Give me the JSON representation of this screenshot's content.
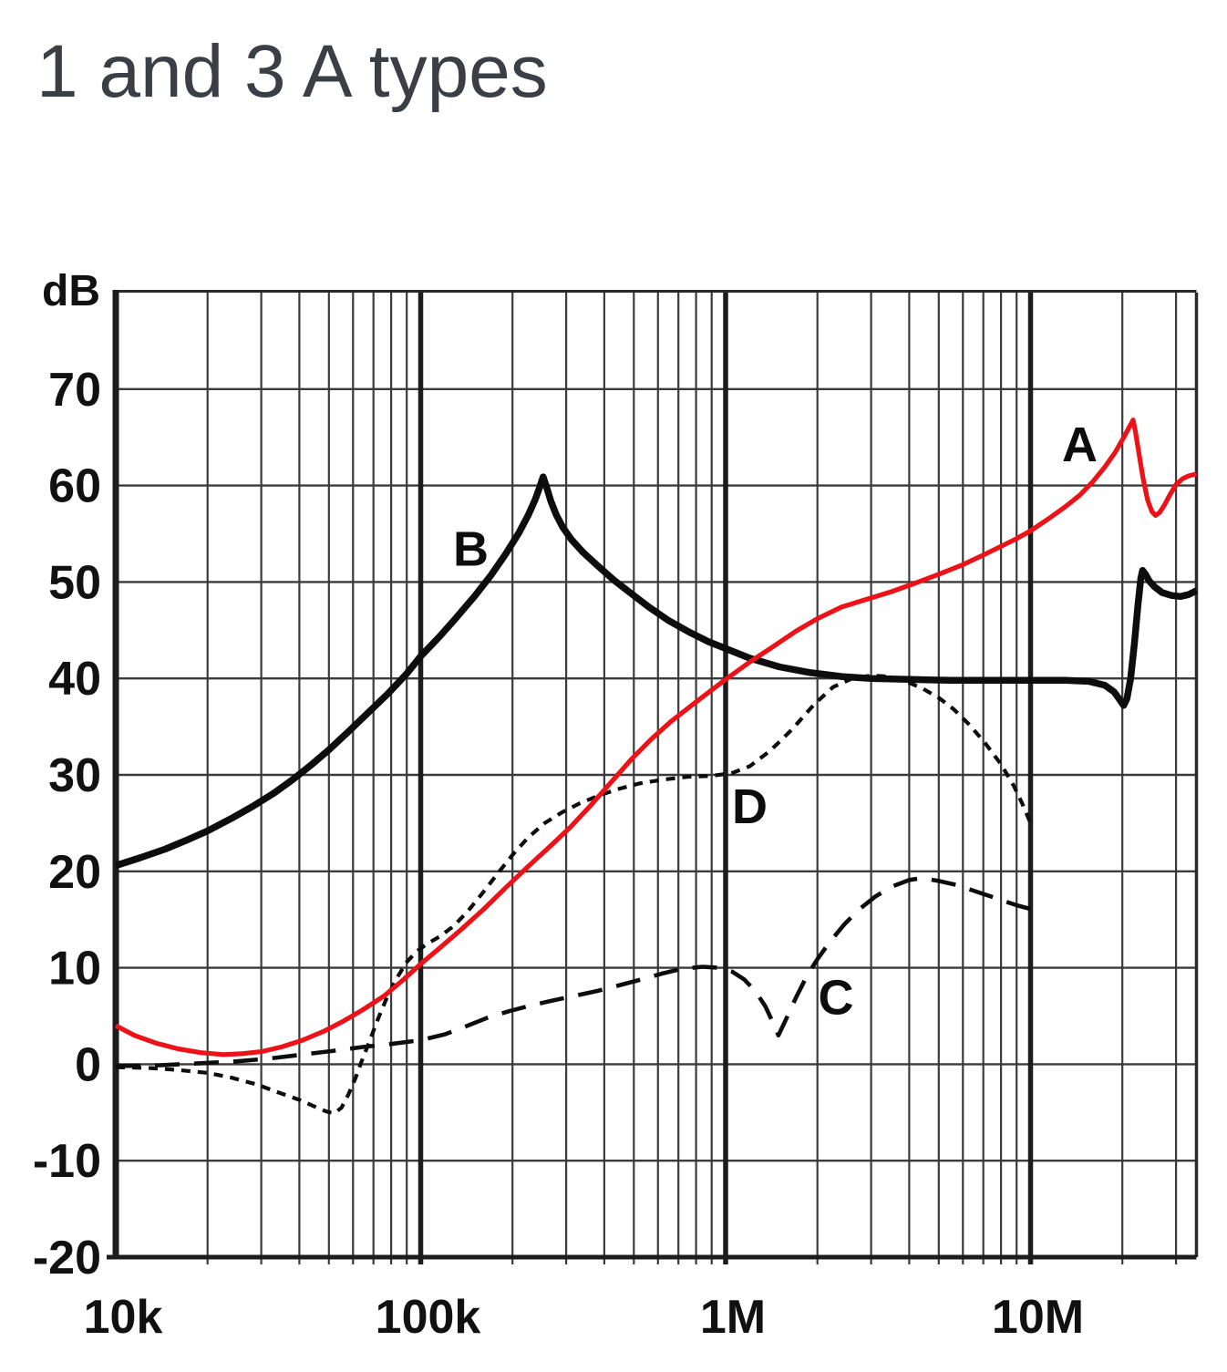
{
  "page": {
    "title": "1 and 3 A types"
  },
  "chart_data": {
    "type": "line",
    "title": "1 and 3 A types",
    "grid": "on",
    "legend_position": "none",
    "colors": {
      "black_curve": "#0d0d0d",
      "red_curve": "#ec1218",
      "grid_minor": "#3b3b3b",
      "grid_major": "#1c1c1c",
      "frame": "#2a2a2a",
      "tick_text": "#111111"
    },
    "y_axis": {
      "unit_label": "dB",
      "min": -20,
      "max": 80,
      "grid_step": 10,
      "ticks": [
        {
          "label": "70",
          "value": 70
        },
        {
          "label": "60",
          "value": 60
        },
        {
          "label": "50",
          "value": 50
        },
        {
          "label": "40",
          "value": 40
        },
        {
          "label": "30",
          "value": 30
        },
        {
          "label": "20",
          "value": 20
        },
        {
          "label": "10",
          "value": 10
        },
        {
          "label": "0",
          "value": 0
        },
        {
          "label": "-10",
          "value": -10
        },
        {
          "label": "-20",
          "value": -20
        }
      ]
    },
    "x_axis": {
      "scale": "log",
      "min": 10000,
      "max": 35000000,
      "ticks": [
        {
          "label": "10k",
          "value": 10000
        },
        {
          "label": "100k",
          "value": 100000
        },
        {
          "label": "1M",
          "value": 1000000
        },
        {
          "label": "10M",
          "value": 10000000
        }
      ],
      "major_gridlines": [
        100000,
        1000000,
        10000000
      ]
    },
    "series": [
      {
        "id": "C",
        "label": "C",
        "color": "#0d0d0d",
        "stroke_width": 4.6,
        "dash": "27 16",
        "label_pos": [
          2300000,
          7.0
        ],
        "points": [
          [
            10000,
            -0.2
          ],
          [
            14000,
            -0.1
          ],
          [
            19000,
            0.1
          ],
          [
            25000,
            0.3
          ],
          [
            32000,
            0.6
          ],
          [
            41000,
            1.0
          ],
          [
            52000,
            1.4
          ],
          [
            65000,
            1.8
          ],
          [
            80000,
            2.1
          ],
          [
            100000,
            2.5
          ],
          [
            120000,
            3.1
          ],
          [
            140000,
            3.9
          ],
          [
            165000,
            4.8
          ],
          [
            195000,
            5.5
          ],
          [
            230000,
            6.1
          ],
          [
            270000,
            6.6
          ],
          [
            320000,
            7.1
          ],
          [
            380000,
            7.6
          ],
          [
            450000,
            8.2
          ],
          [
            530000,
            8.8
          ],
          [
            620000,
            9.4
          ],
          [
            720000,
            9.9
          ],
          [
            840000,
            10.1
          ],
          [
            950000,
            10.0
          ],
          [
            1050000,
            9.6
          ],
          [
            1150000,
            8.8
          ],
          [
            1250000,
            7.6
          ],
          [
            1350000,
            6.0
          ],
          [
            1430000,
            4.3
          ],
          [
            1490000,
            3.0
          ],
          [
            1570000,
            4.5
          ],
          [
            1700000,
            6.9
          ],
          [
            1850000,
            9.2
          ],
          [
            2000000,
            10.9
          ],
          [
            2200000,
            12.7
          ],
          [
            2450000,
            14.5
          ],
          [
            2750000,
            16.1
          ],
          [
            3100000,
            17.4
          ],
          [
            3500000,
            18.4
          ],
          [
            4000000,
            19.1
          ],
          [
            4400000,
            19.3
          ],
          [
            5000000,
            19.0
          ],
          [
            5700000,
            18.6
          ],
          [
            6500000,
            18.0
          ],
          [
            7400000,
            17.4
          ],
          [
            8400000,
            16.8
          ],
          [
            9200000,
            16.4
          ],
          [
            10000000,
            16.1
          ]
        ]
      },
      {
        "id": "D",
        "label": "D",
        "color": "#0d0d0d",
        "stroke_width": 4.2,
        "dash": "10 8",
        "label_pos": [
          1200000,
          26.8
        ],
        "points": [
          [
            10000,
            -0.3
          ],
          [
            13000,
            -0.4
          ],
          [
            16000,
            -0.6
          ],
          [
            20000,
            -0.9
          ],
          [
            24000,
            -1.4
          ],
          [
            29000,
            -2.1
          ],
          [
            34000,
            -2.9
          ],
          [
            40000,
            -3.7
          ],
          [
            45000,
            -4.4
          ],
          [
            49000,
            -4.9
          ],
          [
            52000,
            -5.1
          ],
          [
            55000,
            -4.5
          ],
          [
            58000,
            -3.1
          ],
          [
            61000,
            -1.5
          ],
          [
            64000,
            0.3
          ],
          [
            68000,
            2.4
          ],
          [
            72000,
            4.5
          ],
          [
            77000,
            6.7
          ],
          [
            83000,
            8.8
          ],
          [
            90000,
            10.6
          ],
          [
            97000,
            11.7
          ],
          [
            105000,
            12.5
          ],
          [
            115000,
            13.2
          ],
          [
            128000,
            14.3
          ],
          [
            143000,
            15.9
          ],
          [
            160000,
            17.8
          ],
          [
            180000,
            19.9
          ],
          [
            200000,
            21.7
          ],
          [
            225000,
            23.5
          ],
          [
            255000,
            25.0
          ],
          [
            290000,
            26.1
          ],
          [
            330000,
            27.0
          ],
          [
            380000,
            27.8
          ],
          [
            440000,
            28.5
          ],
          [
            520000,
            29.1
          ],
          [
            620000,
            29.5
          ],
          [
            750000,
            29.8
          ],
          [
            900000,
            29.9
          ],
          [
            1050000,
            30.2
          ],
          [
            1200000,
            30.9
          ],
          [
            1400000,
            32.5
          ],
          [
            1650000,
            34.7
          ],
          [
            1950000,
            37.3
          ],
          [
            2250000,
            39.1
          ],
          [
            2600000,
            40.0
          ],
          [
            3000000,
            40.3
          ],
          [
            3400000,
            40.2
          ],
          [
            3900000,
            39.7
          ],
          [
            4400000,
            39.0
          ],
          [
            5000000,
            38.0
          ],
          [
            5600000,
            36.8
          ],
          [
            6300000,
            35.2
          ],
          [
            7100000,
            33.3
          ],
          [
            8000000,
            31.1
          ],
          [
            8800000,
            28.9
          ],
          [
            9400000,
            27.0
          ],
          [
            10000000,
            25.0
          ]
        ]
      },
      {
        "id": "B",
        "label": "B",
        "color": "#0d0d0d",
        "stroke_width": 7.5,
        "dash": null,
        "label_pos": [
          146000,
          53.5
        ],
        "points": [
          [
            10000,
            20.6
          ],
          [
            12000,
            21.4
          ],
          [
            14500,
            22.3
          ],
          [
            17000,
            23.2
          ],
          [
            20000,
            24.2
          ],
          [
            24000,
            25.5
          ],
          [
            28000,
            26.7
          ],
          [
            33000,
            28.1
          ],
          [
            38000,
            29.5
          ],
          [
            44000,
            31.1
          ],
          [
            50000,
            32.6
          ],
          [
            58000,
            34.5
          ],
          [
            67000,
            36.4
          ],
          [
            78000,
            38.4
          ],
          [
            90000,
            40.5
          ],
          [
            100000,
            42.3
          ],
          [
            115000,
            44.3
          ],
          [
            130000,
            46.2
          ],
          [
            150000,
            48.5
          ],
          [
            170000,
            50.7
          ],
          [
            190000,
            52.9
          ],
          [
            210000,
            55.1
          ],
          [
            225000,
            56.9
          ],
          [
            237000,
            58.5
          ],
          [
            246000,
            59.9
          ],
          [
            252000,
            60.9
          ],
          [
            259000,
            59.8
          ],
          [
            267000,
            58.4
          ],
          [
            278000,
            57.0
          ],
          [
            292000,
            55.7
          ],
          [
            312000,
            54.4
          ],
          [
            340000,
            53.1
          ],
          [
            380000,
            51.7
          ],
          [
            430000,
            50.2
          ],
          [
            490000,
            48.8
          ],
          [
            560000,
            47.4
          ],
          [
            650000,
            46.0
          ],
          [
            760000,
            44.8
          ],
          [
            880000,
            43.8
          ],
          [
            1000000,
            43.1
          ],
          [
            1200000,
            42.1
          ],
          [
            1500000,
            41.2
          ],
          [
            1900000,
            40.6
          ],
          [
            2400000,
            40.2
          ],
          [
            3000000,
            40.0
          ],
          [
            4000000,
            39.9
          ],
          [
            5500000,
            39.8
          ],
          [
            7500000,
            39.8
          ],
          [
            10000000,
            39.8
          ],
          [
            13000000,
            39.8
          ],
          [
            15500000,
            39.7
          ],
          [
            17500000,
            39.3
          ],
          [
            18800000,
            38.6
          ],
          [
            19700000,
            37.7
          ],
          [
            20200000,
            37.2
          ],
          [
            20700000,
            37.9
          ],
          [
            21300000,
            40.0
          ],
          [
            21900000,
            43.6
          ],
          [
            22500000,
            47.6
          ],
          [
            23000000,
            50.4
          ],
          [
            23300000,
            51.2
          ],
          [
            23800000,
            50.8
          ],
          [
            24500000,
            50.1
          ],
          [
            25500000,
            49.5
          ],
          [
            27000000,
            48.9
          ],
          [
            29000000,
            48.6
          ],
          [
            31000000,
            48.5
          ],
          [
            33000000,
            48.7
          ],
          [
            35000000,
            49.1
          ]
        ]
      },
      {
        "id": "A",
        "label": "A",
        "color": "#ec1218",
        "stroke_width": 5.2,
        "dash": null,
        "label_pos": [
          14500000,
          64.3
        ],
        "points": [
          [
            10000,
            4.0
          ],
          [
            11500,
            3.0
          ],
          [
            13500,
            2.2
          ],
          [
            16000,
            1.6
          ],
          [
            19000,
            1.2
          ],
          [
            22500,
            1.0
          ],
          [
            26000,
            1.1
          ],
          [
            30000,
            1.3
          ],
          [
            35000,
            1.8
          ],
          [
            41000,
            2.5
          ],
          [
            48000,
            3.4
          ],
          [
            56000,
            4.5
          ],
          [
            65000,
            5.7
          ],
          [
            76000,
            7.1
          ],
          [
            88000,
            8.8
          ],
          [
            100000,
            10.4
          ],
          [
            115000,
            12.0
          ],
          [
            135000,
            13.9
          ],
          [
            160000,
            16.0
          ],
          [
            190000,
            18.3
          ],
          [
            225000,
            20.5
          ],
          [
            270000,
            22.8
          ],
          [
            310000,
            24.6
          ],
          [
            360000,
            26.8
          ],
          [
            420000,
            29.2
          ],
          [
            490000,
            31.6
          ],
          [
            570000,
            33.7
          ],
          [
            660000,
            35.5
          ],
          [
            780000,
            37.3
          ],
          [
            900000,
            38.8
          ],
          [
            1000000,
            39.9
          ],
          [
            1200000,
            41.7
          ],
          [
            1400000,
            43.1
          ],
          [
            1700000,
            44.9
          ],
          [
            2000000,
            46.2
          ],
          [
            2400000,
            47.4
          ],
          [
            2900000,
            48.2
          ],
          [
            3500000,
            49.0
          ],
          [
            4200000,
            49.9
          ],
          [
            5000000,
            50.8
          ],
          [
            6000000,
            51.8
          ],
          [
            7000000,
            52.8
          ],
          [
            8000000,
            53.7
          ],
          [
            9000000,
            54.5
          ],
          [
            10000000,
            55.3
          ],
          [
            11500000,
            56.6
          ],
          [
            13000000,
            57.8
          ],
          [
            14500000,
            59.0
          ],
          [
            16000000,
            60.4
          ],
          [
            17500000,
            61.9
          ],
          [
            19000000,
            63.5
          ],
          [
            20300000,
            65.1
          ],
          [
            21100000,
            66.1
          ],
          [
            21700000,
            66.8
          ],
          [
            22100000,
            65.5
          ],
          [
            22700000,
            63.2
          ],
          [
            23400000,
            60.7
          ],
          [
            24200000,
            58.5
          ],
          [
            25000000,
            57.3
          ],
          [
            25700000,
            56.9
          ],
          [
            26500000,
            57.2
          ],
          [
            27500000,
            58.0
          ],
          [
            28700000,
            59.1
          ],
          [
            30000000,
            60.1
          ],
          [
            31500000,
            60.7
          ],
          [
            33000000,
            61.0
          ],
          [
            35000000,
            61.2
          ]
        ]
      }
    ]
  }
}
